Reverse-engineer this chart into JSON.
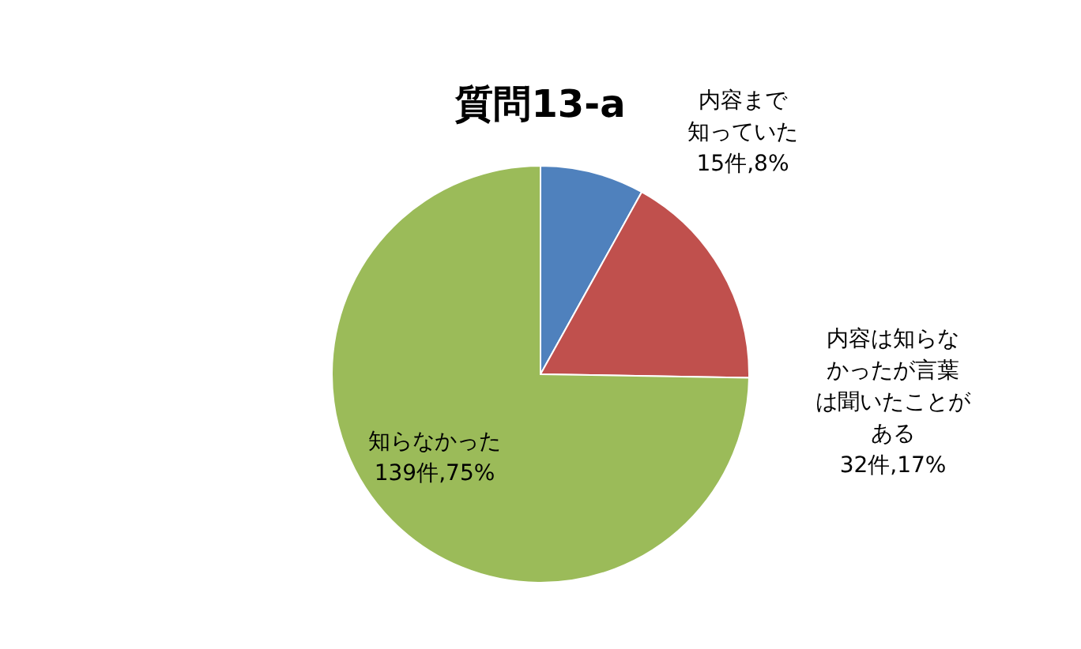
{
  "chart_data": {
    "type": "pie",
    "title": "質問13-a",
    "categories": [
      "内容まで知っていた",
      "内容は知らなかったが言葉は聞いたことがある",
      "知らなかった"
    ],
    "values": [
      15,
      32,
      139
    ],
    "value_labels": [
      "15件,8%",
      "32件,17%",
      "139件,75%"
    ],
    "colors": [
      "#4f81bd",
      "#c0504d",
      "#9bbb59"
    ],
    "legend": false
  }
}
